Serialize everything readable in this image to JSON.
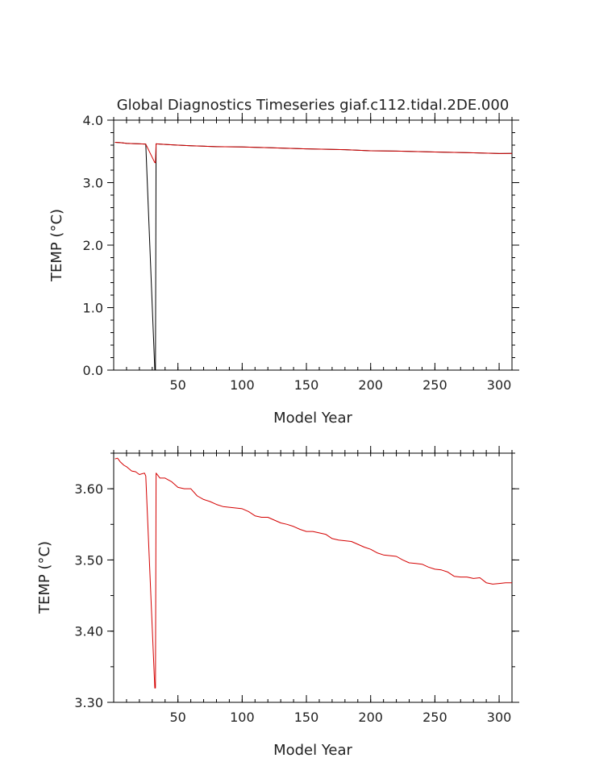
{
  "title": "Global Diagnostics Timeseries giaf.c112.tidal.2DE.000",
  "colors": {
    "black_series": "#000000",
    "red_series": "#d40000",
    "axis": "#000000"
  },
  "chart_data": [
    {
      "type": "line",
      "title": "Global Diagnostics Timeseries giaf.c112.tidal.2DE.000",
      "xlabel": "Model Year",
      "ylabel": "TEMP (°C)",
      "xlim": [
        0,
        310
      ],
      "ylim": [
        0.0,
        4.0
      ],
      "xticks": [
        50,
        100,
        150,
        200,
        250,
        300
      ],
      "xtick_labels": [
        "50",
        "100",
        "150",
        "200",
        "250",
        "300"
      ],
      "yticks": [
        0.0,
        1.0,
        2.0,
        3.0,
        4.0
      ],
      "ytick_labels": [
        "0.0",
        "1.0",
        "2.0",
        "3.0",
        "4.0"
      ],
      "series": [
        {
          "color": "#000000",
          "x": [
            1,
            5,
            10,
            15,
            20,
            24,
            25,
            32,
            32.5,
            33,
            40,
            50,
            60,
            80,
            100,
            120,
            150,
            180,
            200,
            220,
            250,
            280,
            300,
            310
          ],
          "y": [
            3.645,
            3.64,
            3.63,
            3.625,
            3.62,
            3.618,
            3.615,
            0.0,
            0.0,
            3.62,
            3.612,
            3.6,
            3.59,
            3.575,
            3.57,
            3.56,
            3.54,
            3.528,
            3.51,
            3.505,
            3.49,
            3.478,
            3.466,
            3.468
          ]
        },
        {
          "color": "#d40000",
          "x": [
            1,
            5,
            10,
            15,
            20,
            24,
            25,
            32,
            32.5,
            33,
            40,
            50,
            60,
            80,
            100,
            120,
            150,
            180,
            200,
            220,
            250,
            280,
            300,
            310
          ],
          "y": [
            3.645,
            3.64,
            3.63,
            3.625,
            3.62,
            3.618,
            3.615,
            3.32,
            3.32,
            3.62,
            3.612,
            3.6,
            3.59,
            3.575,
            3.57,
            3.56,
            3.54,
            3.528,
            3.51,
            3.505,
            3.49,
            3.478,
            3.466,
            3.468
          ]
        }
      ]
    },
    {
      "type": "line",
      "xlabel": "Model Year",
      "ylabel": "TEMP (°C)",
      "xlim": [
        0,
        310
      ],
      "ylim": [
        3.3,
        3.65
      ],
      "xticks": [
        50,
        100,
        150,
        200,
        250,
        300
      ],
      "xtick_labels": [
        "50",
        "100",
        "150",
        "200",
        "250",
        "300"
      ],
      "yticks": [
        3.3,
        3.4,
        3.5,
        3.6
      ],
      "ytick_labels": [
        "3.30",
        "3.40",
        "3.50",
        "3.60"
      ],
      "series": [
        {
          "color": "#d40000",
          "x": [
            1,
            3,
            5,
            8,
            10,
            14,
            17,
            20,
            24,
            25,
            32,
            32.5,
            33,
            36,
            40,
            45,
            50,
            55,
            60,
            65,
            70,
            75,
            80,
            85,
            90,
            95,
            100,
            105,
            110,
            115,
            120,
            125,
            130,
            135,
            140,
            145,
            150,
            155,
            160,
            165,
            170,
            175,
            180,
            185,
            190,
            195,
            200,
            205,
            210,
            215,
            220,
            225,
            230,
            235,
            240,
            245,
            250,
            255,
            260,
            265,
            270,
            275,
            280,
            285,
            290,
            295,
            300,
            305,
            310
          ],
          "y": [
            3.642,
            3.643,
            3.638,
            3.633,
            3.631,
            3.625,
            3.624,
            3.62,
            3.622,
            3.618,
            3.32,
            3.32,
            3.622,
            3.615,
            3.615,
            3.61,
            3.602,
            3.6,
            3.6,
            3.59,
            3.585,
            3.582,
            3.578,
            3.575,
            3.574,
            3.573,
            3.572,
            3.568,
            3.562,
            3.56,
            3.56,
            3.556,
            3.552,
            3.55,
            3.547,
            3.543,
            3.54,
            3.54,
            3.538,
            3.536,
            3.53,
            3.528,
            3.527,
            3.526,
            3.522,
            3.518,
            3.515,
            3.51,
            3.507,
            3.506,
            3.505,
            3.5,
            3.496,
            3.495,
            3.494,
            3.49,
            3.487,
            3.486,
            3.483,
            3.477,
            3.476,
            3.476,
            3.474,
            3.475,
            3.468,
            3.466,
            3.467,
            3.468,
            3.468
          ]
        }
      ]
    }
  ]
}
